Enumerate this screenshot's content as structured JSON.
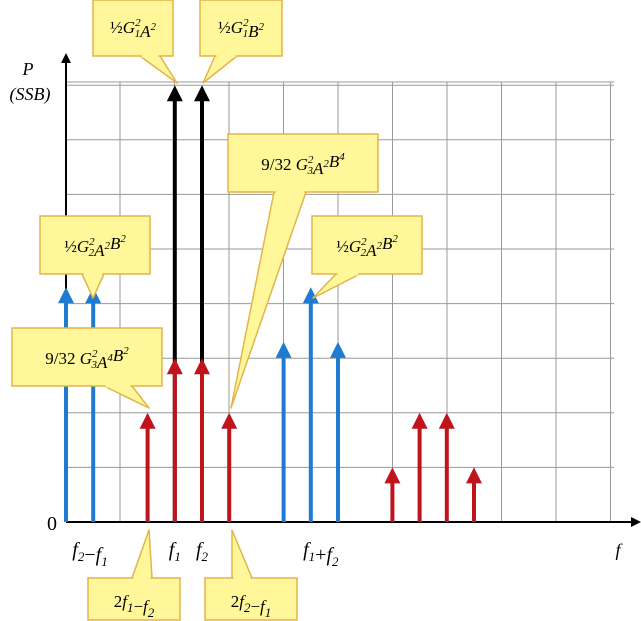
{
  "chart_data": {
    "type": "bar",
    "xlabel": "f",
    "ylabel_top": "P",
    "ylabel_bottom": "(SSB)",
    "y_origin_label": "0",
    "grid": true,
    "colors": {
      "blue": "#1f7ad1",
      "red": "#c0141c",
      "black": "#000000",
      "callout_fill": "#fff79a",
      "callout_stroke": "#e3b44a",
      "grid": "#9a9a9a"
    },
    "x_ticks": [
      {
        "x": 0,
        "parts": [
          {
            "t": "f",
            "i": true,
            "sub": "2"
          },
          {
            "t": "−"
          },
          {
            "t": "f",
            "i": true,
            "sub": "1"
          }
        ]
      },
      {
        "x": 4,
        "parts": [
          {
            "t": "f",
            "i": true,
            "sub": "1"
          }
        ]
      },
      {
        "x": 5,
        "parts": [
          {
            "t": "f",
            "i": true,
            "sub": "2"
          }
        ]
      },
      {
        "x": 9,
        "parts": [
          {
            "t": "f",
            "i": true,
            "sub": "1"
          },
          {
            "t": "+"
          },
          {
            "t": "f",
            "i": true,
            "sub": "2"
          }
        ]
      }
    ],
    "arrows": [
      {
        "x": 0,
        "y": 4.3,
        "color": "blue"
      },
      {
        "x": 1,
        "y": 4.3,
        "color": "blue"
      },
      {
        "x": 3,
        "y": 2.0,
        "color": "red"
      },
      {
        "x": 4,
        "y": 8.0,
        "color": "black"
      },
      {
        "x": 4,
        "y": 3.0,
        "color": "red"
      },
      {
        "x": 5,
        "y": 8.0,
        "color": "black"
      },
      {
        "x": 5,
        "y": 3.0,
        "color": "red"
      },
      {
        "x": 6,
        "y": 2.0,
        "color": "red"
      },
      {
        "x": 8,
        "y": 3.3,
        "color": "blue"
      },
      {
        "x": 9,
        "y": 4.3,
        "color": "blue"
      },
      {
        "x": 10,
        "y": 3.3,
        "color": "blue"
      },
      {
        "x": 12,
        "y": 1.0,
        "color": "red"
      },
      {
        "x": 13,
        "y": 2.0,
        "color": "red"
      },
      {
        "x": 14,
        "y": 2.0,
        "color": "red"
      },
      {
        "x": 15,
        "y": 1.0,
        "color": "red"
      }
    ],
    "callouts": [
      {
        "parts": [
          {
            "t": "½"
          },
          {
            "t": "G",
            "i": true,
            "sub": "1",
            "sup": "2"
          },
          {
            "t": "A",
            "i": true,
            "sup": "2"
          }
        ]
      },
      {
        "parts": [
          {
            "t": "½"
          },
          {
            "t": "G",
            "i": true,
            "sub": "1",
            "sup": "2"
          },
          {
            "t": "B",
            "i": true,
            "sup": "2"
          }
        ]
      },
      {
        "parts": [
          {
            "t": "9/32 "
          },
          {
            "t": "G",
            "i": true,
            "sub": "3",
            "sup": "2"
          },
          {
            "t": "A",
            "i": true,
            "sup": "2"
          },
          {
            "t": "B",
            "i": true,
            "sup": "4"
          }
        ]
      },
      {
        "parts": [
          {
            "t": "½"
          },
          {
            "t": "G",
            "i": true,
            "sub": "2",
            "sup": "2"
          },
          {
            "t": "A",
            "i": true,
            "sup": "2"
          },
          {
            "t": "B",
            "i": true,
            "sup": "2"
          }
        ]
      },
      {
        "parts": [
          {
            "t": "½"
          },
          {
            "t": "G",
            "i": true,
            "sub": "2",
            "sup": "2"
          },
          {
            "t": "A",
            "i": true,
            "sup": "2"
          },
          {
            "t": "B",
            "i": true,
            "sup": "2"
          }
        ]
      },
      {
        "parts": [
          {
            "t": "9/32 "
          },
          {
            "t": "G",
            "i": true,
            "sub": "3",
            "sup": "2"
          },
          {
            "t": "A",
            "i": true,
            "sup": "4"
          },
          {
            "t": "B",
            "i": true,
            "sup": "2"
          }
        ]
      },
      {
        "parts": [
          {
            "t": "2"
          },
          {
            "t": "f",
            "i": true,
            "sub": "1"
          },
          {
            "t": "−"
          },
          {
            "t": "f",
            "i": true,
            "sub": "2"
          }
        ]
      },
      {
        "parts": [
          {
            "t": "2"
          },
          {
            "t": "f",
            "i": true,
            "sub": "2"
          },
          {
            "t": "−"
          },
          {
            "t": "f",
            "i": true,
            "sub": "1"
          }
        ]
      }
    ]
  }
}
